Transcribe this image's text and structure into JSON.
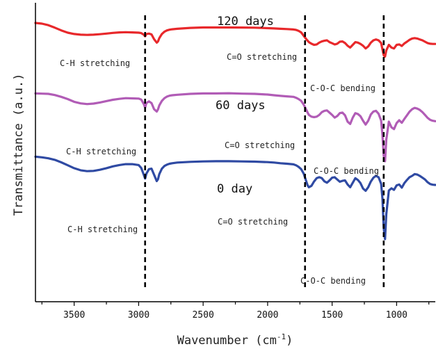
{
  "chart_data": {
    "type": "line",
    "xlabel": "Wavenumber (cm",
    "xlabel_sup": "-1",
    "xlabel_close": ")",
    "ylabel": "Transmittance (a.u.)",
    "x_reversed": true,
    "xlim": [
      3800,
      700
    ],
    "x_ticks": [
      3500,
      3000,
      2500,
      2000,
      1500,
      1000
    ],
    "y_ticks": "none",
    "grid": false,
    "legend": "none",
    "series": [
      {
        "name": "120 days",
        "color": "#e8282b",
        "x": [
          3800,
          3750,
          3700,
          3650,
          3600,
          3550,
          3500,
          3450,
          3400,
          3350,
          3300,
          3250,
          3200,
          3150,
          3100,
          3050,
          3000,
          2980,
          2960,
          2950,
          2940,
          2920,
          2900,
          2880,
          2860,
          2850,
          2840,
          2820,
          2800,
          2780,
          2760,
          2740,
          2700,
          2600,
          2500,
          2400,
          2300,
          2200,
          2100,
          2000,
          1950,
          1900,
          1850,
          1800,
          1780,
          1760,
          1740,
          1720,
          1700,
          1690,
          1680,
          1660,
          1640,
          1620,
          1600,
          1580,
          1560,
          1540,
          1520,
          1500,
          1480,
          1460,
          1440,
          1420,
          1400,
          1380,
          1360,
          1340,
          1320,
          1300,
          1280,
          1260,
          1240,
          1220,
          1200,
          1180,
          1160,
          1140,
          1120,
          1110,
          1100,
          1090,
          1080,
          1060,
          1040,
          1020,
          1000,
          980,
          960,
          940,
          920,
          900,
          880,
          860,
          840,
          820,
          800,
          780,
          760,
          740,
          720,
          700
        ],
        "y": [
          0.3,
          0.6,
          1.3,
          2.4,
          3.6,
          4.6,
          5.2,
          5.5,
          5.6,
          5.5,
          5.3,
          5.0,
          4.7,
          4.5,
          4.4,
          4.5,
          4.6,
          4.8,
          5.5,
          6.2,
          5.2,
          5.0,
          5.4,
          7.5,
          9.0,
          8.5,
          7.0,
          5.2,
          4.2,
          3.6,
          3.3,
          3.1,
          2.9,
          2.5,
          2.3,
          2.3,
          2.3,
          2.35,
          2.4,
          2.6,
          2.75,
          2.9,
          3.0,
          3.2,
          3.4,
          3.8,
          4.5,
          6.0,
          7.5,
          8.2,
          8.8,
          9.5,
          10.0,
          9.8,
          9.0,
          8.5,
          8.2,
          8.0,
          8.8,
          9.3,
          9.8,
          9.5,
          8.6,
          8.5,
          9.2,
          10.4,
          11.2,
          10.0,
          8.8,
          9.0,
          9.6,
          10.4,
          11.6,
          10.7,
          9.0,
          8.0,
          7.6,
          8.0,
          9.2,
          12.0,
          14.6,
          15.2,
          12.5,
          10.0,
          11.2,
          11.6,
          10.0,
          9.8,
          10.5,
          9.4,
          8.6,
          7.8,
          7.2,
          7.0,
          7.2,
          7.6,
          8.0,
          8.6,
          9.2,
          9.5,
          9.6,
          9.6
        ]
      },
      {
        "name": "60 days",
        "color": "#b15cb6",
        "x": [
          3800,
          3750,
          3700,
          3650,
          3600,
          3550,
          3500,
          3450,
          3400,
          3350,
          3300,
          3250,
          3200,
          3150,
          3100,
          3050,
          3000,
          2980,
          2960,
          2950,
          2940,
          2920,
          2900,
          2880,
          2860,
          2850,
          2840,
          2820,
          2800,
          2780,
          2760,
          2740,
          2700,
          2600,
          2500,
          2400,
          2300,
          2200,
          2100,
          2000,
          1950,
          1900,
          1850,
          1800,
          1780,
          1760,
          1740,
          1720,
          1700,
          1690,
          1680,
          1660,
          1640,
          1620,
          1600,
          1580,
          1560,
          1540,
          1520,
          1500,
          1480,
          1460,
          1440,
          1420,
          1400,
          1380,
          1360,
          1340,
          1320,
          1300,
          1280,
          1260,
          1240,
          1220,
          1200,
          1180,
          1160,
          1140,
          1120,
          1110,
          1100,
          1090,
          1080,
          1060,
          1040,
          1020,
          1000,
          980,
          960,
          940,
          920,
          900,
          880,
          860,
          840,
          820,
          800,
          780,
          760,
          740,
          720,
          700
        ],
        "y": [
          31.5,
          31.6,
          31.7,
          32.2,
          33.0,
          34.0,
          35.2,
          35.9,
          36.2,
          36.0,
          35.5,
          34.9,
          34.3,
          33.9,
          33.6,
          33.7,
          33.8,
          34.2,
          36.2,
          37.8,
          35.8,
          35.0,
          35.8,
          38.5,
          39.5,
          38.6,
          36.8,
          34.8,
          33.6,
          32.9,
          32.5,
          32.3,
          32.1,
          31.7,
          31.5,
          31.5,
          31.4,
          31.6,
          31.7,
          32.0,
          32.3,
          32.6,
          32.8,
          33.0,
          33.4,
          34.0,
          34.8,
          36.5,
          38.8,
          40.0,
          41.0,
          41.8,
          42.0,
          41.8,
          41.0,
          39.8,
          39.2,
          39.0,
          40.0,
          41.0,
          42.2,
          41.5,
          40.2,
          40.0,
          41.2,
          44.0,
          45.0,
          42.2,
          40.2,
          40.6,
          41.6,
          43.6,
          45.3,
          43.6,
          40.8,
          39.5,
          39.2,
          40.5,
          43.5,
          50.0,
          59.0,
          61.5,
          52.0,
          44.0,
          46.5,
          47.3,
          44.6,
          43.4,
          44.5,
          42.8,
          41.2,
          39.6,
          38.5,
          37.9,
          38.2,
          38.8,
          39.8,
          41.0,
          42.3,
          43.2,
          43.6,
          43.8
        ]
      },
      {
        "name": "0 day",
        "color": "#2f4aa3",
        "x": [
          3800,
          3750,
          3700,
          3650,
          3600,
          3550,
          3500,
          3450,
          3400,
          3350,
          3300,
          3250,
          3200,
          3150,
          3100,
          3050,
          3000,
          2980,
          2960,
          2950,
          2940,
          2920,
          2900,
          2880,
          2860,
          2850,
          2840,
          2820,
          2800,
          2780,
          2760,
          2740,
          2700,
          2600,
          2500,
          2400,
          2300,
          2200,
          2100,
          2000,
          1950,
          1900,
          1850,
          1800,
          1780,
          1760,
          1740,
          1720,
          1700,
          1690,
          1680,
          1660,
          1640,
          1620,
          1600,
          1580,
          1560,
          1540,
          1520,
          1500,
          1480,
          1460,
          1440,
          1420,
          1400,
          1380,
          1360,
          1340,
          1320,
          1300,
          1280,
          1260,
          1240,
          1220,
          1200,
          1180,
          1160,
          1140,
          1120,
          1110,
          1100,
          1090,
          1080,
          1060,
          1040,
          1020,
          1000,
          980,
          960,
          940,
          920,
          900,
          880,
          860,
          840,
          820,
          800,
          780,
          760,
          740,
          720,
          700
        ],
        "y": [
          59.5,
          59.8,
          60.2,
          60.9,
          62.0,
          63.3,
          64.6,
          65.5,
          65.9,
          65.8,
          65.3,
          64.6,
          63.8,
          63.2,
          62.8,
          62.8,
          63.2,
          64.5,
          67.5,
          69.2,
          67.0,
          65.0,
          64.8,
          67.5,
          70.3,
          69.5,
          67.2,
          64.8,
          63.6,
          63.0,
          62.6,
          62.4,
          62.1,
          61.8,
          61.6,
          61.5,
          61.5,
          61.6,
          61.7,
          61.9,
          62.1,
          62.4,
          62.6,
          62.9,
          63.3,
          64.0,
          65.0,
          67.0,
          70.5,
          72.2,
          73.0,
          72.4,
          70.5,
          69.0,
          68.6,
          69.0,
          70.4,
          71.0,
          70.0,
          68.8,
          68.6,
          69.6,
          70.6,
          70.2,
          70.0,
          71.8,
          73.0,
          71.0,
          69.0,
          69.8,
          71.2,
          73.6,
          74.6,
          73.0,
          70.5,
          68.8,
          68.0,
          68.6,
          71.5,
          78.0,
          91.0,
          96.0,
          85.0,
          74.5,
          73.5,
          74.2,
          72.2,
          71.8,
          73.2,
          71.2,
          69.8,
          68.6,
          68.0,
          67.2,
          67.4,
          68.0,
          68.8,
          69.6,
          70.8,
          71.6,
          71.9,
          72.0
        ]
      }
    ],
    "annotations": [
      {
        "name": "120 days",
        "text": "120 days",
        "kind": "series-title"
      },
      {
        "name": "60 days",
        "text": "60 days",
        "kind": "series-title"
      },
      {
        "name": "0 day",
        "text": "0 day",
        "kind": "series-title"
      },
      {
        "name": "ch-120",
        "text": "C-H stretching"
      },
      {
        "name": "co-120",
        "text": "C=O stretching"
      },
      {
        "name": "coc-120",
        "text": "C-O-C  bending"
      },
      {
        "name": "ch-60",
        "text": "C-H stretching"
      },
      {
        "name": "co-60",
        "text": "C=O stretching"
      },
      {
        "name": "coc-60",
        "text": "C-O-C  bending"
      },
      {
        "name": "ch-0",
        "text": "C-H stretching"
      },
      {
        "name": "co-0",
        "text": "C=O stretching"
      },
      {
        "name": "coc-0",
        "text": "C-O-C  bending"
      }
    ],
    "reference_lines_x": [
      2950,
      1710,
      1100
    ]
  }
}
